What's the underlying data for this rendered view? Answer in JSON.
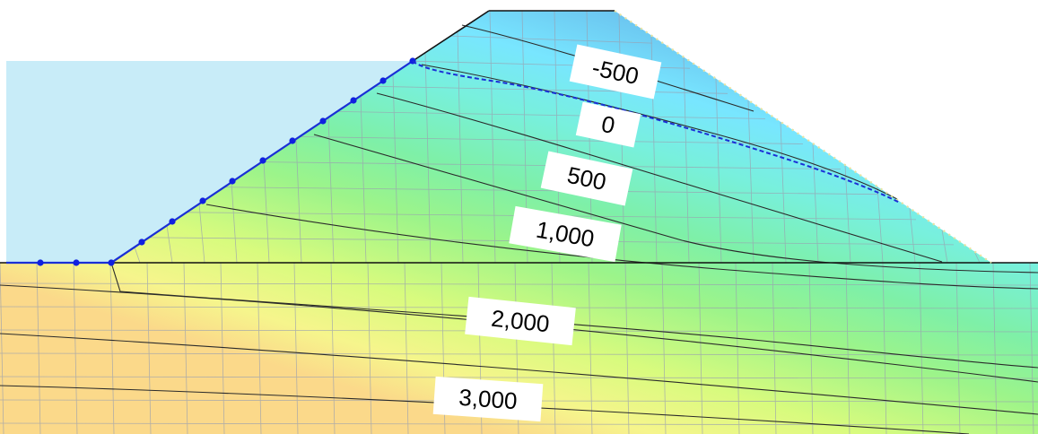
{
  "contour_labels": [
    {
      "id": "m500",
      "text": "-500"
    },
    {
      "id": "zero",
      "text": "0"
    },
    {
      "id": "p500",
      "text": "500"
    },
    {
      "id": "p1000",
      "text": "1,000"
    },
    {
      "id": "p2000",
      "text": "2,000"
    },
    {
      "id": "p3000",
      "text": "3,000"
    }
  ],
  "colors": {
    "reservoir_water": "#c8ecf8",
    "phreatic_line": "#1a2fd6",
    "boundary_nodes": "#1020e0",
    "mesh_lines": "#9aa0b0",
    "contour_lines": "#2a2a2a",
    "ground_line": "#111111"
  }
}
